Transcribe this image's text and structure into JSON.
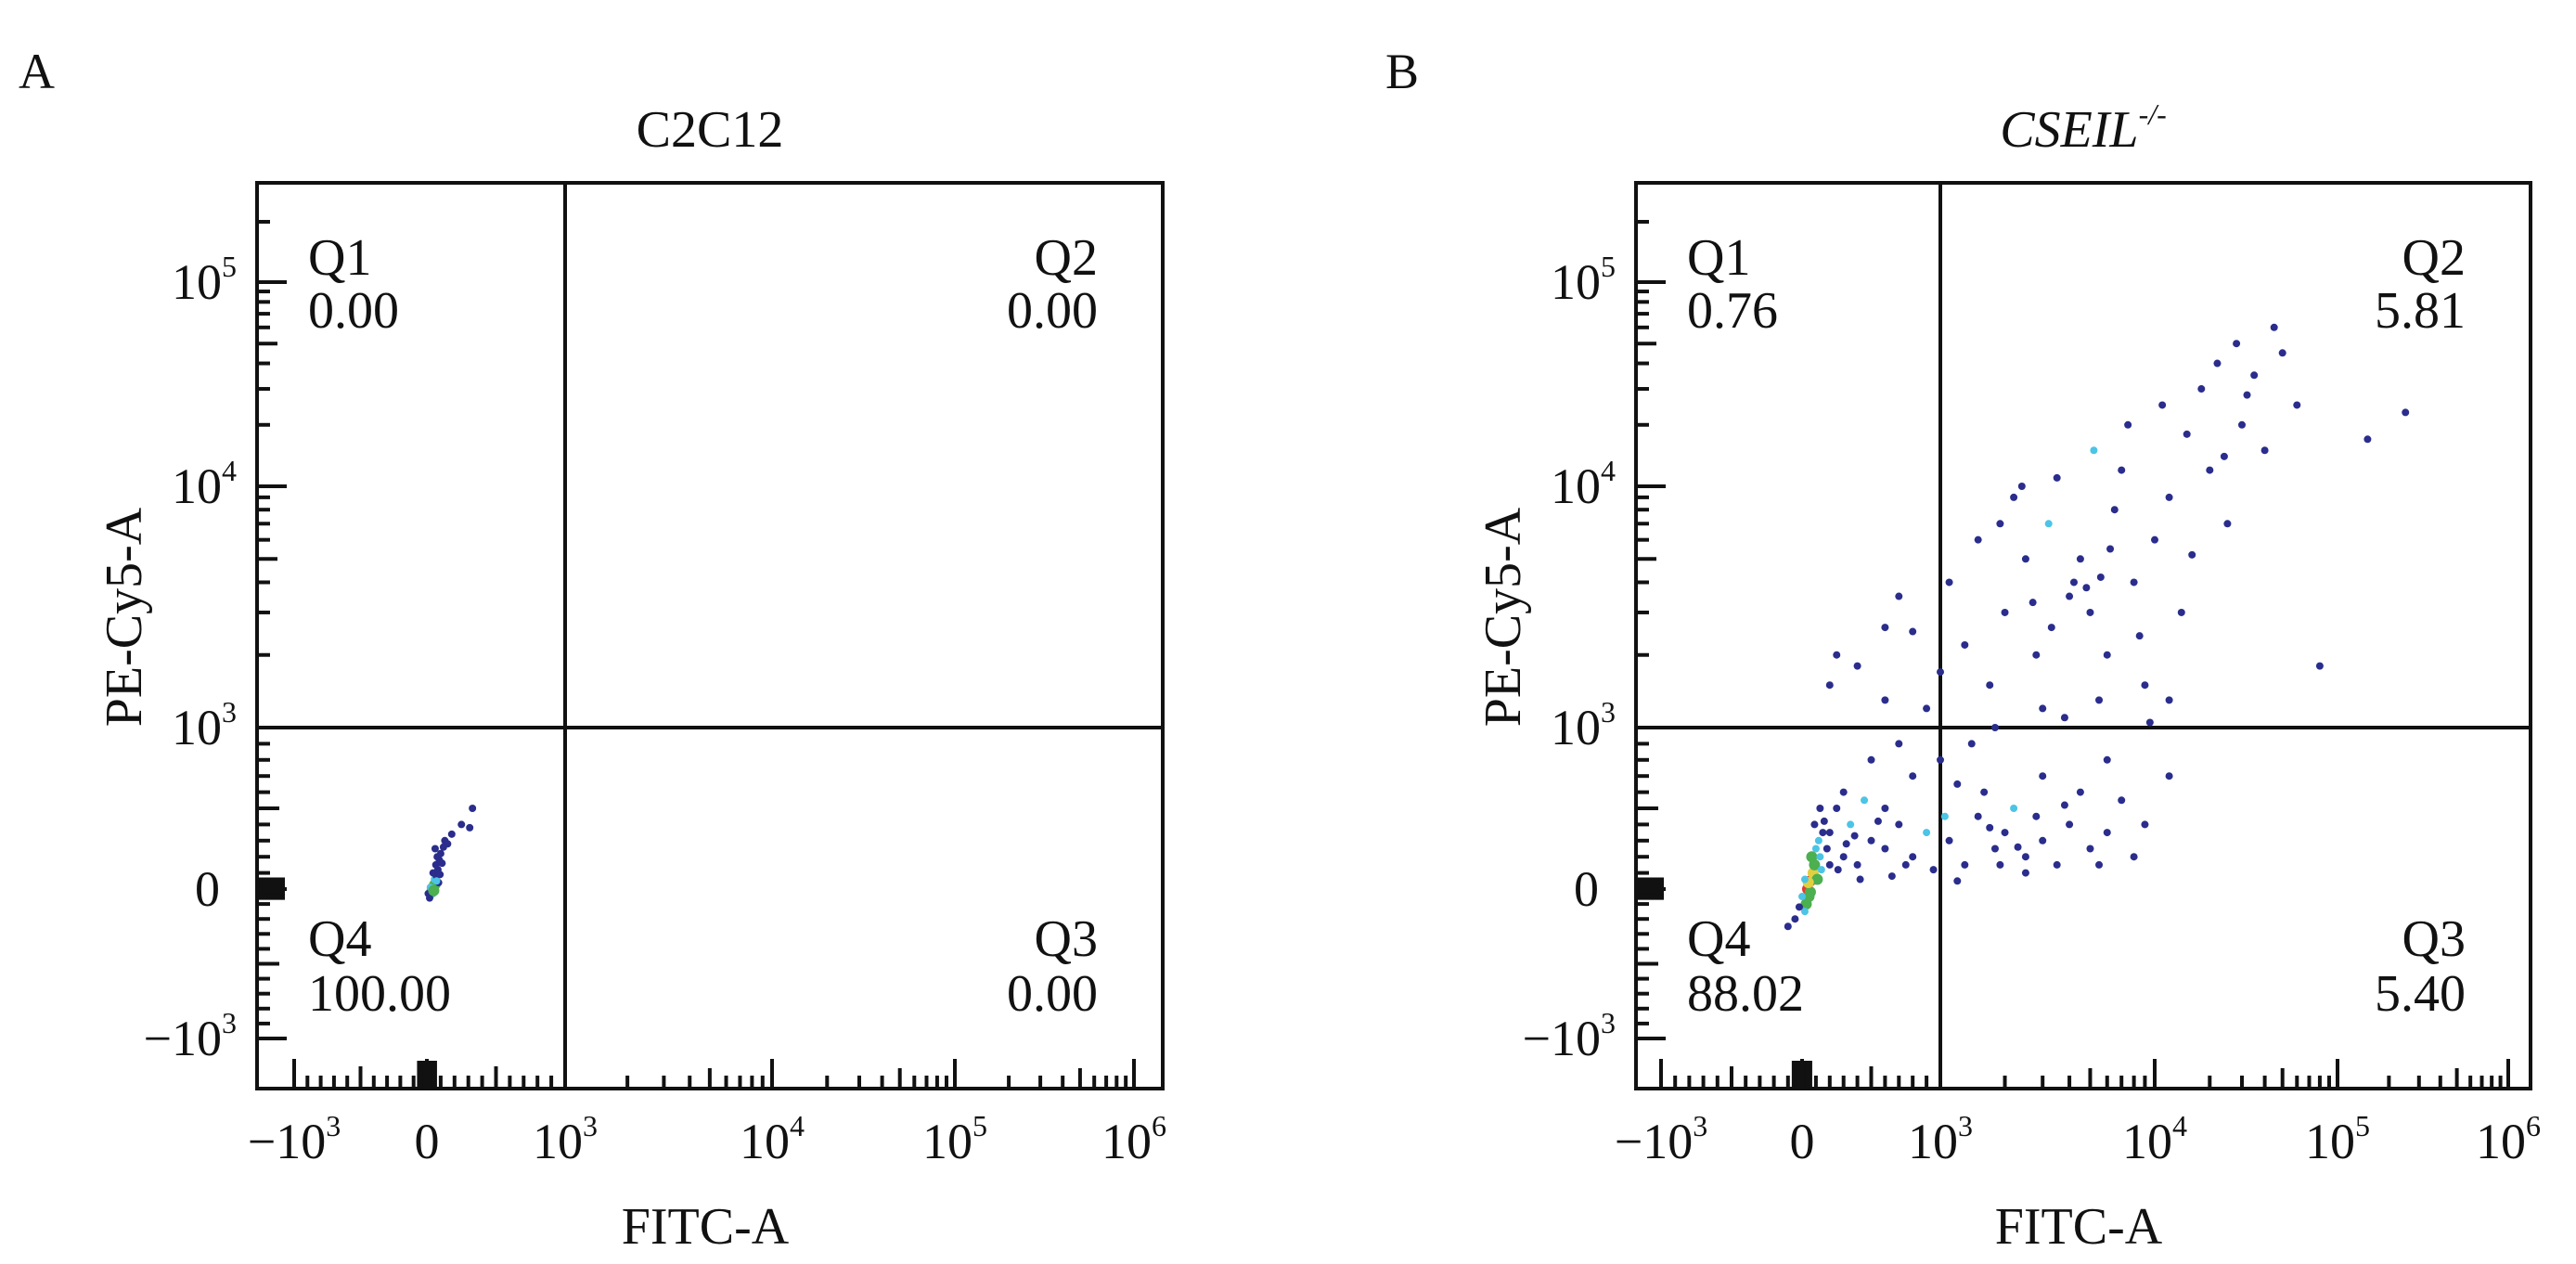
{
  "palette": [
    "#2a2d8c",
    "#4cc4e6",
    "#4caf50",
    "#e53935",
    "#e0d040"
  ],
  "chart_data": [
    {
      "type": "scatter",
      "panel": "A",
      "title": "C2C12",
      "title_italic": false,
      "title_sup": "",
      "xlabel": "FITC-A",
      "ylabel": "PE-Cy5-A",
      "x_scale": "biexponential",
      "y_scale": "biexponential",
      "x_ticks": [
        {
          "v": -1000,
          "base": "−10",
          "sup": "3"
        },
        {
          "v": 0,
          "base": "0",
          "sup": ""
        },
        {
          "v": 1000,
          "base": "10",
          "sup": "3"
        },
        {
          "v": 10000,
          "base": "10",
          "sup": "4"
        },
        {
          "v": 100000,
          "base": "10",
          "sup": "5"
        },
        {
          "v": 1000000,
          "base": "10",
          "sup": "6"
        }
      ],
      "y_ticks": [
        {
          "v": -1000,
          "base": "−10",
          "sup": "3"
        },
        {
          "v": 0,
          "base": "0",
          "sup": ""
        },
        {
          "v": 1000,
          "base": "10",
          "sup": "3"
        },
        {
          "v": 10000,
          "base": "10",
          "sup": "4"
        },
        {
          "v": 100000,
          "base": "10",
          "sup": "5"
        }
      ],
      "gate": {
        "x": 1000,
        "y": 1000
      },
      "quadrants": [
        {
          "name": "Q1",
          "value": "0.00",
          "pos": "top-left"
        },
        {
          "name": "Q2",
          "value": "0.00",
          "pos": "top-right"
        },
        {
          "name": "Q3",
          "value": "0.00",
          "pos": "bottom-right"
        },
        {
          "name": "Q4",
          "value": "100.00",
          "pos": "bottom-left"
        }
      ],
      "points": [
        [
          40,
          0,
          3
        ],
        [
          50,
          20,
          4
        ],
        [
          35,
          -20,
          2
        ],
        [
          60,
          30,
          2
        ],
        [
          30,
          -40,
          1
        ],
        [
          55,
          60,
          1
        ],
        [
          70,
          80,
          0
        ],
        [
          45,
          100,
          0
        ],
        [
          80,
          120,
          0
        ],
        [
          65,
          150,
          0
        ],
        [
          90,
          180,
          0
        ],
        [
          75,
          200,
          0
        ],
        [
          100,
          220,
          0
        ],
        [
          60,
          250,
          0
        ],
        [
          20,
          -60,
          0
        ],
        [
          10,
          -30,
          0
        ],
        [
          85,
          40,
          0
        ],
        [
          95,
          90,
          0
        ],
        [
          110,
          160,
          0
        ],
        [
          120,
          260,
          0
        ],
        [
          130,
          300,
          0
        ],
        [
          150,
          280,
          0
        ],
        [
          180,
          340,
          0
        ],
        [
          250,
          400,
          0
        ],
        [
          330,
          500,
          0
        ],
        [
          310,
          380,
          0
        ],
        [
          25,
          10,
          1
        ],
        [
          50,
          -10,
          2
        ],
        [
          70,
          50,
          1
        ]
      ]
    },
    {
      "type": "scatter",
      "panel": "B",
      "title": "CSEIL",
      "title_italic": true,
      "title_sup": "-/-",
      "xlabel": "FITC-A",
      "ylabel": "PE-Cy5-A",
      "x_scale": "biexponential",
      "y_scale": "biexponential",
      "x_ticks": [
        {
          "v": -1000,
          "base": "−10",
          "sup": "3"
        },
        {
          "v": 0,
          "base": "0",
          "sup": ""
        },
        {
          "v": 1000,
          "base": "10",
          "sup": "3"
        },
        {
          "v": 10000,
          "base": "10",
          "sup": "4"
        },
        {
          "v": 100000,
          "base": "10",
          "sup": "5"
        },
        {
          "v": 1000000,
          "base": "10",
          "sup": "6"
        }
      ],
      "y_ticks": [
        {
          "v": -1000,
          "base": "−10",
          "sup": "3"
        },
        {
          "v": 0,
          "base": "0",
          "sup": ""
        },
        {
          "v": 1000,
          "base": "10",
          "sup": "3"
        },
        {
          "v": 10000,
          "base": "10",
          "sup": "4"
        },
        {
          "v": 100000,
          "base": "10",
          "sup": "5"
        }
      ],
      "gate": {
        "x": 1000,
        "y": 1000
      },
      "quadrants": [
        {
          "name": "Q1",
          "value": "0.76",
          "pos": "top-left"
        },
        {
          "name": "Q2",
          "value": "5.81",
          "pos": "top-right"
        },
        {
          "name": "Q3",
          "value": "5.40",
          "pos": "bottom-right"
        },
        {
          "name": "Q4",
          "value": "88.02",
          "pos": "bottom-left"
        }
      ],
      "points": [
        [
          40,
          0,
          3
        ],
        [
          60,
          50,
          3
        ],
        [
          80,
          100,
          4
        ],
        [
          50,
          -50,
          2
        ],
        [
          90,
          150,
          2
        ],
        [
          70,
          200,
          2
        ],
        [
          100,
          250,
          1
        ],
        [
          30,
          -100,
          2
        ],
        [
          120,
          300,
          1
        ],
        [
          20,
          -150,
          1
        ],
        [
          -50,
          -200,
          0
        ],
        [
          -100,
          -250,
          0
        ],
        [
          110,
          60,
          2
        ],
        [
          140,
          120,
          1
        ],
        [
          60,
          -20,
          2
        ],
        [
          45,
          40,
          4
        ],
        [
          130,
          200,
          1
        ],
        [
          20,
          60,
          1
        ],
        [
          0,
          -50,
          1
        ],
        [
          -20,
          -120,
          0
        ],
        [
          150,
          350,
          0
        ],
        [
          160,
          420,
          0
        ],
        [
          130,
          500,
          0
        ],
        [
          180,
          250,
          0
        ],
        [
          200,
          150,
          0
        ],
        [
          90,
          400,
          0
        ],
        [
          200,
          350,
          0
        ],
        [
          300,
          200,
          0
        ],
        [
          350,
          400,
          1
        ],
        [
          400,
          150,
          0
        ],
        [
          500,
          300,
          0
        ],
        [
          600,
          250,
          0
        ],
        [
          700,
          400,
          0
        ],
        [
          800,
          200,
          0
        ],
        [
          900,
          350,
          1
        ],
        [
          1100,
          300,
          0
        ],
        [
          1300,
          150,
          0
        ],
        [
          1500,
          450,
          0
        ],
        [
          1800,
          250,
          0
        ],
        [
          2000,
          350,
          0
        ],
        [
          2500,
          200,
          0
        ],
        [
          3000,
          300,
          0
        ],
        [
          3500,
          150,
          0
        ],
        [
          4000,
          400,
          0
        ],
        [
          5000,
          250,
          0
        ],
        [
          6000,
          350,
          0
        ],
        [
          2200,
          500,
          1
        ],
        [
          1600,
          600,
          0
        ],
        [
          1200,
          650,
          0
        ],
        [
          800,
          700,
          0
        ],
        [
          500,
          800,
          0
        ],
        [
          300,
          600,
          0
        ],
        [
          250,
          500,
          0
        ],
        [
          450,
          550,
          1
        ],
        [
          700,
          900,
          0
        ],
        [
          1000,
          800,
          0
        ],
        [
          1400,
          900,
          0
        ],
        [
          3000,
          700,
          0
        ],
        [
          4500,
          600,
          0
        ],
        [
          6000,
          800,
          0
        ],
        [
          7000,
          550,
          0
        ],
        [
          9000,
          400,
          0
        ],
        [
          12000,
          700,
          0
        ],
        [
          2800,
          450,
          0
        ],
        [
          3800,
          520,
          0
        ],
        [
          1900,
          150,
          0
        ],
        [
          950,
          120,
          0
        ],
        [
          650,
          80,
          0
        ],
        [
          420,
          60,
          0
        ],
        [
          1200,
          50,
          0
        ],
        [
          2500,
          100,
          0
        ],
        [
          5500,
          150,
          0
        ],
        [
          8000,
          200,
          0
        ],
        [
          320,
          280,
          0
        ],
        [
          380,
          330,
          0
        ],
        [
          550,
          420,
          0
        ],
        [
          750,
          150,
          0
        ],
        [
          1050,
          450,
          1
        ],
        [
          1700,
          380,
          0
        ],
        [
          2300,
          260,
          0
        ],
        [
          260,
          120,
          0
        ],
        [
          600,
          500,
          0
        ],
        [
          200,
          1500,
          0
        ],
        [
          250,
          2000,
          0
        ],
        [
          400,
          1800,
          0
        ],
        [
          600,
          1300,
          0
        ],
        [
          800,
          2500,
          0
        ],
        [
          700,
          3500,
          0
        ],
        [
          900,
          1200,
          0
        ],
        [
          1100,
          4000,
          0
        ],
        [
          1300,
          2200,
          0
        ],
        [
          1500,
          6000,
          0
        ],
        [
          1700,
          1500,
          0
        ],
        [
          2000,
          3000,
          0
        ],
        [
          2200,
          9000,
          0
        ],
        [
          2500,
          5000,
          0
        ],
        [
          2800,
          2000,
          0
        ],
        [
          3000,
          1200,
          0
        ],
        [
          3200,
          7000,
          1
        ],
        [
          3500,
          11000,
          0
        ],
        [
          4000,
          3500,
          0
        ],
        [
          4200,
          4000,
          0
        ],
        [
          4500,
          5000,
          0
        ],
        [
          5000,
          3000,
          0
        ],
        [
          5200,
          15000,
          1
        ],
        [
          6000,
          2000,
          0
        ],
        [
          6500,
          8000,
          0
        ],
        [
          7000,
          12000,
          0
        ],
        [
          7500,
          20000,
          0
        ],
        [
          8000,
          4000,
          0
        ],
        [
          9000,
          1500,
          0
        ],
        [
          10000,
          6000,
          0
        ],
        [
          11000,
          25000,
          0
        ],
        [
          12000,
          9000,
          0
        ],
        [
          14000,
          3000,
          0
        ],
        [
          15000,
          18000,
          0
        ],
        [
          18000,
          30000,
          0
        ],
        [
          20000,
          12000,
          0
        ],
        [
          22000,
          40000,
          0
        ],
        [
          25000,
          7000,
          0
        ],
        [
          28000,
          50000,
          0
        ],
        [
          30000,
          20000,
          0
        ],
        [
          35000,
          35000,
          0
        ],
        [
          40000,
          15000,
          0
        ],
        [
          45000,
          60000,
          0
        ],
        [
          50000,
          45000,
          0
        ],
        [
          60000,
          25000,
          0
        ],
        [
          80000,
          1800,
          0
        ],
        [
          150000,
          17000,
          0
        ],
        [
          250000,
          23000,
          0
        ],
        [
          3800,
          1100,
          0
        ],
        [
          5500,
          1300,
          0
        ],
        [
          9500,
          1050,
          0
        ],
        [
          12000,
          1300,
          0
        ],
        [
          1800,
          1000,
          0
        ],
        [
          2400,
          10000,
          0
        ],
        [
          1900,
          7000,
          0
        ],
        [
          1000,
          1700,
          0
        ],
        [
          600,
          2600,
          0
        ],
        [
          5600,
          4200,
          0
        ],
        [
          4800,
          3800,
          0
        ],
        [
          6200,
          5500,
          0
        ],
        [
          3300,
          2600,
          0
        ],
        [
          2700,
          3300,
          0
        ],
        [
          8500,
          2400,
          0
        ],
        [
          16000,
          5200,
          0
        ],
        [
          24000,
          14000,
          0
        ],
        [
          32000,
          28000,
          0
        ]
      ]
    }
  ]
}
